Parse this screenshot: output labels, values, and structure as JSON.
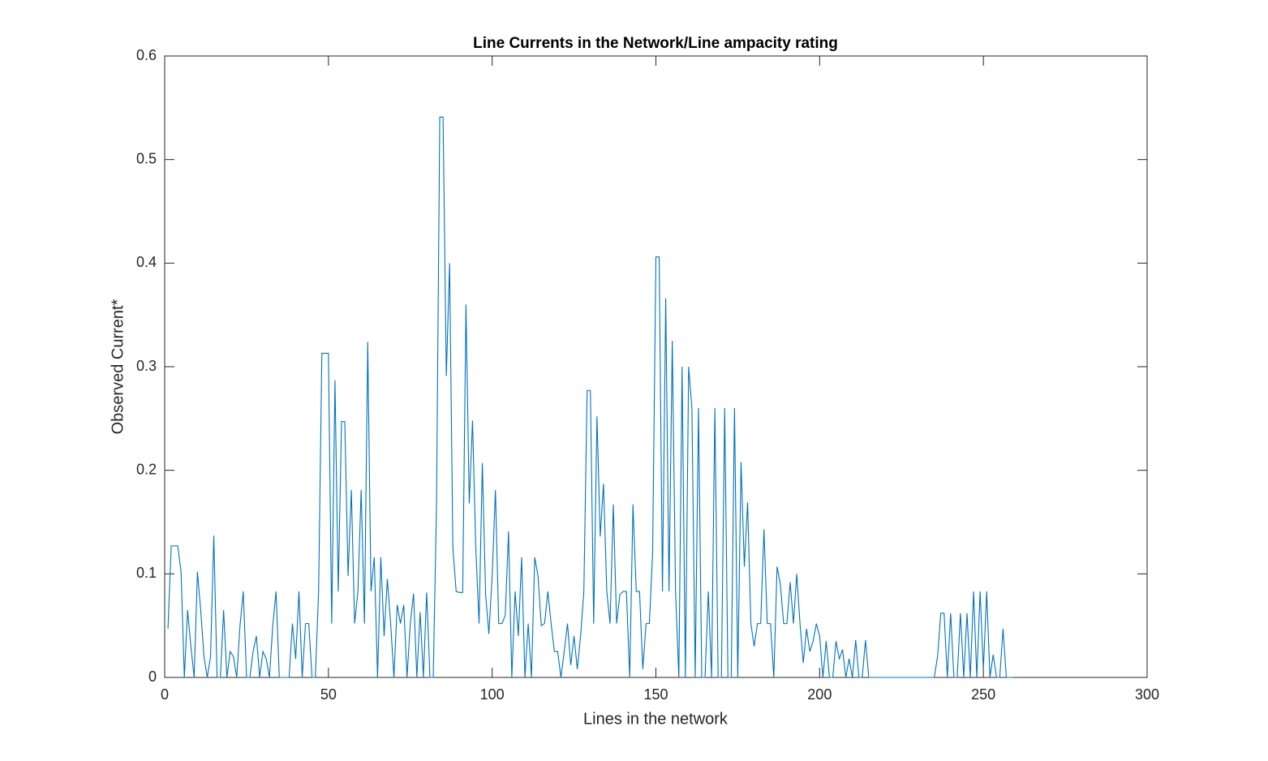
{
  "chart_data": {
    "type": "line",
    "title": "Line Currents in the Network/Line ampacity rating",
    "x_label": "Lines in the network",
    "y_label": "Observed Current*",
    "xlim": [
      0,
      300
    ],
    "xticks": [
      0,
      50,
      100,
      150,
      200,
      250,
      300
    ],
    "ylim": [
      0,
      0.6
    ],
    "yticks": [
      0,
      0.1,
      0.2,
      0.3,
      0.4,
      0.5,
      0.6
    ],
    "grid": false,
    "color": "#0072bd",
    "x": [
      1,
      2,
      3,
      4,
      5,
      6,
      7,
      8,
      9,
      10,
      11,
      12,
      13,
      14,
      15,
      16,
      17,
      18,
      19,
      20,
      21,
      22,
      23,
      24,
      25,
      26,
      27,
      28,
      29,
      30,
      31,
      32,
      33,
      34,
      35,
      36,
      37,
      38,
      39,
      40,
      41,
      42,
      43,
      44,
      45,
      46,
      47,
      48,
      49,
      50,
      51,
      52,
      53,
      54,
      55,
      56,
      57,
      58,
      59,
      60,
      61,
      62,
      63,
      64,
      65,
      66,
      67,
      68,
      69,
      70,
      71,
      72,
      73,
      74,
      75,
      76,
      77,
      78,
      79,
      80,
      81,
      82,
      83,
      84,
      85,
      86,
      87,
      88,
      89,
      90,
      91,
      92,
      93,
      94,
      95,
      96,
      97,
      98,
      99,
      100,
      101,
      102,
      103,
      104,
      105,
      106,
      107,
      108,
      109,
      110,
      111,
      112,
      113,
      114,
      115,
      116,
      117,
      118,
      119,
      120,
      121,
      122,
      123,
      124,
      125,
      126,
      127,
      128,
      129,
      130,
      131,
      132,
      133,
      134,
      135,
      136,
      137,
      138,
      139,
      140,
      141,
      142,
      143,
      144,
      145,
      146,
      147,
      148,
      149,
      150,
      151,
      152,
      153,
      154,
      155,
      156,
      157,
      158,
      159,
      160,
      161,
      162,
      163,
      164,
      165,
      166,
      167,
      168,
      169,
      170,
      171,
      172,
      173,
      174,
      175,
      176,
      177,
      178,
      179,
      180,
      181,
      182,
      183,
      184,
      185,
      186,
      187,
      188,
      189,
      190,
      191,
      192,
      193,
      194,
      195,
      196,
      197,
      198,
      199,
      200,
      201,
      202,
      203,
      204,
      205,
      206,
      207,
      208,
      209,
      210,
      211,
      212,
      213,
      214,
      215,
      216,
      217,
      218,
      219,
      220,
      221,
      222,
      223,
      224,
      225,
      226,
      227,
      228,
      229,
      230,
      231,
      232,
      233,
      234,
      235,
      236,
      237,
      238,
      239,
      240,
      241,
      242,
      243,
      244,
      245,
      246,
      247,
      248,
      249,
      250,
      251,
      252,
      253,
      254,
      255,
      256,
      257,
      258,
      259
    ],
    "values": [
      0.047,
      0.127,
      0.127,
      0.127,
      0.102,
      0,
      0.065,
      0.03,
      0,
      0.102,
      0.065,
      0.02,
      0,
      0.02,
      0.137,
      0,
      0,
      0.065,
      0,
      0.025,
      0.02,
      0,
      0.05,
      0.083,
      0,
      0,
      0.025,
      0.04,
      0,
      0.025,
      0.018,
      0,
      0.05,
      0.083,
      0,
      0,
      0,
      0,
      0.052,
      0.018,
      0.083,
      0,
      0.052,
      0.052,
      0,
      0,
      0.083,
      0.313,
      0.313,
      0.313,
      0.052,
      0.287,
      0.083,
      0.247,
      0.247,
      0.098,
      0.181,
      0.052,
      0.083,
      0.181,
      0.052,
      0.324,
      0.083,
      0.116,
      0,
      0.116,
      0.04,
      0.095,
      0.052,
      0,
      0.07,
      0.052,
      0.07,
      0,
      0.052,
      0.081,
      0,
      0.063,
      0,
      0.082,
      0,
      0,
      0.165,
      0.541,
      0.541,
      0.291,
      0.4,
      0.125,
      0.083,
      0.082,
      0.082,
      0.36,
      0.168,
      0.248,
      0.125,
      0.052,
      0.207,
      0.08,
      0.042,
      0.098,
      0.181,
      0.052,
      0.052,
      0.06,
      0.141,
      0,
      0.083,
      0.04,
      0.116,
      0,
      0.052,
      0,
      0.116,
      0.098,
      0.05,
      0.052,
      0.083,
      0.052,
      0.025,
      0.025,
      0,
      0.025,
      0.052,
      0.012,
      0.04,
      0.008,
      0.04,
      0.083,
      0.277,
      0.277,
      0.052,
      0.252,
      0.136,
      0.187,
      0.083,
      0.052,
      0.167,
      0.052,
      0.08,
      0.083,
      0.083,
      0,
      0.167,
      0.083,
      0.083,
      0.008,
      0.052,
      0.052,
      0.12,
      0.406,
      0.406,
      0.083,
      0.366,
      0.083,
      0.325,
      0.083,
      0,
      0.3,
      0,
      0.3,
      0.26,
      0,
      0.26,
      0,
      0,
      0.083,
      0,
      0.26,
      0,
      0,
      0.26,
      0,
      0,
      0.26,
      0,
      0.208,
      0.107,
      0.169,
      0.052,
      0.03,
      0.052,
      0.052,
      0.143,
      0.052,
      0.052,
      0,
      0.107,
      0.09,
      0.052,
      0.052,
      0.092,
      0.052,
      0.1,
      0.052,
      0.014,
      0.047,
      0.025,
      0.035,
      0.052,
      0.04,
      0,
      0.035,
      0,
      0,
      0.035,
      0.018,
      0.027,
      0,
      0.018,
      0,
      0.036,
      0,
      0,
      0.036,
      0,
      0,
      0,
      0,
      0,
      0,
      0,
      0,
      0,
      0,
      0,
      0,
      0,
      0,
      0,
      0,
      0,
      0,
      0,
      0,
      0,
      0.02,
      0.062,
      0.062,
      0,
      0.062,
      0,
      0,
      0.062,
      0,
      0.062,
      0,
      0.083,
      0,
      0.083,
      0.008,
      0.083,
      0,
      0.022,
      0,
      0,
      0.047,
      0,
      0,
      0
    ]
  }
}
